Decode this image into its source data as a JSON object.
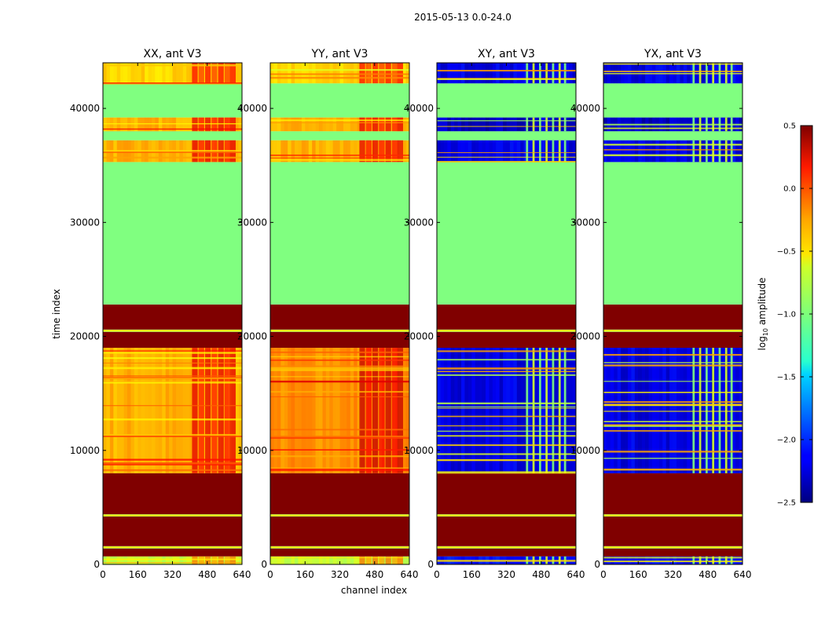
{
  "figure": {
    "suptitle": "2015-05-13 0.0-24.0",
    "xlabel": "channel index",
    "ylabel": "time index",
    "colorbar_label_prefix": "log",
    "colorbar_label_sub": "10",
    "colorbar_label_suffix": " amplitude"
  },
  "chart_data": {
    "type": "heatmap",
    "x_ticks": [
      0,
      160,
      320,
      480,
      640
    ],
    "y_ticks": [
      0,
      10000,
      20000,
      30000,
      40000
    ],
    "xlim": [
      0,
      640
    ],
    "ylim": [
      0,
      44000
    ],
    "colorbar": {
      "range": [
        -2.5,
        0.5
      ],
      "ticks": [
        0.5,
        0.0,
        -0.5,
        -1.0,
        -1.5,
        -2.0,
        -2.5
      ],
      "tick_labels": [
        "0.5",
        "0.0",
        "−0.5",
        "−1.0",
        "−1.5",
        "−2.0",
        "−2.5"
      ],
      "colormap": "jet"
    },
    "panels": [
      {
        "title": "XX, ant V3",
        "kind": "parallel",
        "bands": [
          {
            "y0": 0,
            "y1": 700,
            "level": -0.8
          },
          {
            "y0": 700,
            "y1": 1400,
            "level": 0.5
          },
          {
            "y0": 1400,
            "y1": 1600,
            "level": -0.9
          },
          {
            "y0": 1600,
            "y1": 4200,
            "level": 0.5
          },
          {
            "y0": 4200,
            "y1": 4400,
            "level": -0.9
          },
          {
            "y0": 4400,
            "y1": 8000,
            "level": 0.5
          },
          {
            "y0": 8000,
            "y1": 19000,
            "level": -0.4
          },
          {
            "y0": 19000,
            "y1": 20400,
            "level": 0.5
          },
          {
            "y0": 20400,
            "y1": 20600,
            "level": -0.9
          },
          {
            "y0": 20600,
            "y1": 22800,
            "level": 0.5
          },
          {
            "y0": 22800,
            "y1": 35300,
            "level": -1.0
          },
          {
            "y0": 35300,
            "y1": 37200,
            "level": -0.4
          },
          {
            "y0": 37200,
            "y1": 38000,
            "level": -1.0
          },
          {
            "y0": 38000,
            "y1": 39200,
            "level": -0.4
          },
          {
            "y0": 39200,
            "y1": 42200,
            "level": -1.0
          },
          {
            "y0": 42200,
            "y1": 44000,
            "level": -0.5
          }
        ]
      },
      {
        "title": "YY, ant V3",
        "kind": "parallel",
        "bands": [
          {
            "y0": 0,
            "y1": 700,
            "level": -0.8
          },
          {
            "y0": 700,
            "y1": 1400,
            "level": 0.5
          },
          {
            "y0": 1400,
            "y1": 1600,
            "level": -0.9
          },
          {
            "y0": 1600,
            "y1": 4200,
            "level": 0.5
          },
          {
            "y0": 4200,
            "y1": 4400,
            "level": -0.9
          },
          {
            "y0": 4400,
            "y1": 8000,
            "level": 0.5
          },
          {
            "y0": 8000,
            "y1": 19000,
            "level": -0.3
          },
          {
            "y0": 19000,
            "y1": 20400,
            "level": 0.5
          },
          {
            "y0": 20400,
            "y1": 20600,
            "level": -0.9
          },
          {
            "y0": 20600,
            "y1": 22800,
            "level": 0.5
          },
          {
            "y0": 22800,
            "y1": 35300,
            "level": -1.0
          },
          {
            "y0": 35300,
            "y1": 37200,
            "level": -0.4
          },
          {
            "y0": 37200,
            "y1": 38000,
            "level": -1.0
          },
          {
            "y0": 38000,
            "y1": 39200,
            "level": -0.4
          },
          {
            "y0": 39200,
            "y1": 42200,
            "level": -1.0
          },
          {
            "y0": 42200,
            "y1": 44000,
            "level": -0.5
          }
        ]
      },
      {
        "title": "XY, ant V3",
        "kind": "cross",
        "bands": [
          {
            "y0": 0,
            "y1": 700,
            "level": -2.1
          },
          {
            "y0": 700,
            "y1": 1400,
            "level": 0.5
          },
          {
            "y0": 1400,
            "y1": 1600,
            "level": -0.9
          },
          {
            "y0": 1600,
            "y1": 4200,
            "level": 0.5
          },
          {
            "y0": 4200,
            "y1": 4400,
            "level": -0.9
          },
          {
            "y0": 4400,
            "y1": 8000,
            "level": 0.5
          },
          {
            "y0": 8000,
            "y1": 19000,
            "level": -2.2
          },
          {
            "y0": 19000,
            "y1": 20400,
            "level": 0.5
          },
          {
            "y0": 20400,
            "y1": 20600,
            "level": -0.9
          },
          {
            "y0": 20600,
            "y1": 22800,
            "level": 0.5
          },
          {
            "y0": 22800,
            "y1": 35300,
            "level": -1.0
          },
          {
            "y0": 35300,
            "y1": 37200,
            "level": -2.2
          },
          {
            "y0": 37200,
            "y1": 38000,
            "level": -1.0
          },
          {
            "y0": 38000,
            "y1": 39200,
            "level": -2.3
          },
          {
            "y0": 39200,
            "y1": 42200,
            "level": -1.0
          },
          {
            "y0": 42200,
            "y1": 44000,
            "level": -2.2
          }
        ]
      },
      {
        "title": "YX, ant V3",
        "kind": "cross",
        "bands": [
          {
            "y0": 0,
            "y1": 700,
            "level": -2.1
          },
          {
            "y0": 700,
            "y1": 1400,
            "level": 0.5
          },
          {
            "y0": 1400,
            "y1": 1600,
            "level": -0.9
          },
          {
            "y0": 1600,
            "y1": 4200,
            "level": 0.5
          },
          {
            "y0": 4200,
            "y1": 4400,
            "level": -0.9
          },
          {
            "y0": 4400,
            "y1": 8000,
            "level": 0.5
          },
          {
            "y0": 8000,
            "y1": 19000,
            "level": -2.2
          },
          {
            "y0": 19000,
            "y1": 20400,
            "level": 0.5
          },
          {
            "y0": 20400,
            "y1": 20600,
            "level": -0.9
          },
          {
            "y0": 20600,
            "y1": 22800,
            "level": 0.5
          },
          {
            "y0": 22800,
            "y1": 35300,
            "level": -1.0
          },
          {
            "y0": 35300,
            "y1": 37200,
            "level": -2.2
          },
          {
            "y0": 37200,
            "y1": 38000,
            "level": -1.0
          },
          {
            "y0": 38000,
            "y1": 39200,
            "level": -2.3
          },
          {
            "y0": 39200,
            "y1": 42200,
            "level": -1.0
          },
          {
            "y0": 42200,
            "y1": 44000,
            "level": -2.2
          }
        ]
      }
    ]
  }
}
